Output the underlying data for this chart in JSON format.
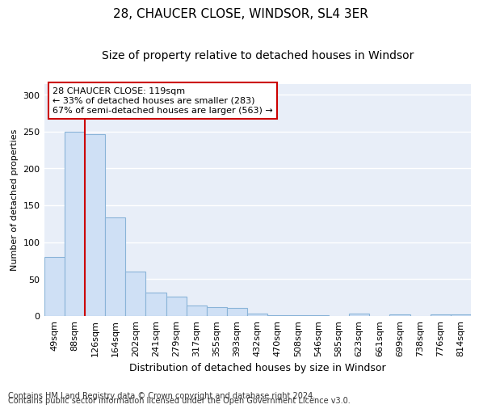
{
  "title1": "28, CHAUCER CLOSE, WINDSOR, SL4 3ER",
  "title2": "Size of property relative to detached houses in Windsor",
  "xlabel": "Distribution of detached houses by size in Windsor",
  "ylabel": "Number of detached properties",
  "categories": [
    "49sqm",
    "88sqm",
    "126sqm",
    "164sqm",
    "202sqm",
    "241sqm",
    "279sqm",
    "317sqm",
    "355sqm",
    "393sqm",
    "432sqm",
    "470sqm",
    "508sqm",
    "546sqm",
    "585sqm",
    "623sqm",
    "661sqm",
    "699sqm",
    "738sqm",
    "776sqm",
    "814sqm"
  ],
  "values": [
    80,
    250,
    246,
    133,
    60,
    31,
    26,
    14,
    12,
    11,
    3,
    1,
    1,
    1,
    0,
    3,
    0,
    2,
    0,
    2,
    2
  ],
  "bar_color": "#cfe0f5",
  "bar_edge_color": "#8ab4d8",
  "property_line_x": 1.5,
  "annotation_text1": "28 CHAUCER CLOSE: 119sqm",
  "annotation_text2": "← 33% of detached houses are smaller (283)",
  "annotation_text3": "67% of semi-detached houses are larger (563) →",
  "annotation_box_color": "#ffffff",
  "annotation_box_edge": "#cc0000",
  "line_color": "#cc0000",
  "footer1": "Contains HM Land Registry data © Crown copyright and database right 2024.",
  "footer2": "Contains public sector information licensed under the Open Government Licence v3.0.",
  "ylim": [
    0,
    315
  ],
  "yticks": [
    0,
    50,
    100,
    150,
    200,
    250,
    300
  ],
  "bg_color": "#e8eef8",
  "grid_color": "#ffffff",
  "title1_fontsize": 11,
  "title2_fontsize": 10,
  "xlabel_fontsize": 9,
  "ylabel_fontsize": 8,
  "tick_fontsize": 8,
  "ann_fontsize": 8,
  "footer_fontsize": 7
}
